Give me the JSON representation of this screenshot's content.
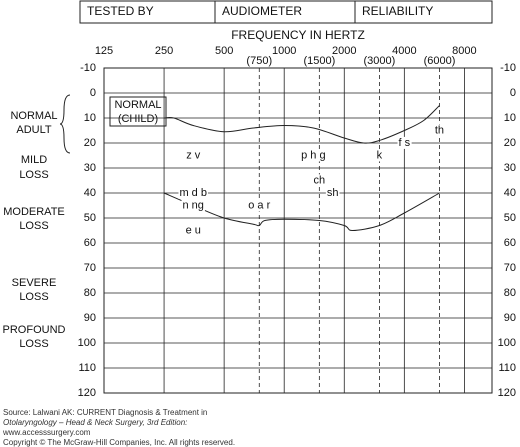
{
  "header": [
    "TESTED BY",
    "AUDIOMETER",
    "RELIABILITY"
  ],
  "chart_data": {
    "type": "line",
    "xlabel": "FREQUENCY IN HERTZ",
    "xlog": true,
    "xlim": [
      125,
      11000
    ],
    "xticks": [
      125,
      250,
      500,
      1000,
      2000,
      4000,
      8000
    ],
    "half_octaves": [
      {
        "value": 750,
        "label": "(750)"
      },
      {
        "value": 1500,
        "label": "(1500)"
      },
      {
        "value": 3000,
        "label": "(3000)"
      },
      {
        "value": 6000,
        "label": "(6000)"
      }
    ],
    "ylim": [
      -10,
      120
    ],
    "yinverted": true,
    "yticks": [
      -10,
      0,
      10,
      20,
      30,
      40,
      50,
      60,
      70,
      80,
      90,
      100,
      110,
      120
    ],
    "hearing_levels": [
      [
        "NORMAL",
        "ADULT"
      ],
      [
        "MILD",
        "LOSS"
      ],
      [
        "MODERATE",
        "LOSS"
      ],
      [
        "SEVERE",
        "LOSS"
      ],
      [
        "PROFOUND",
        "LOSS"
      ]
    ],
    "child_label": [
      "NORMAL",
      "(CHILD)"
    ],
    "series": [
      {
        "x": [
          250,
          280,
          350,
          500,
          700,
          1000,
          1400,
          2000,
          2500,
          3000,
          4000,
          5000,
          6000
        ],
        "values": [
          10,
          10,
          13,
          15.5,
          14,
          13,
          14,
          18,
          20,
          19,
          15,
          11,
          5
        ],
        "color": "#222"
      },
      {
        "x": [
          250,
          350,
          500,
          700,
          750,
          800,
          1000,
          1500,
          2000,
          2200,
          3000,
          4000,
          6000
        ],
        "values": [
          40,
          45,
          50,
          52.5,
          53,
          51,
          50.5,
          51,
          53,
          55,
          53,
          48,
          40
        ],
        "color": "#222"
      }
    ],
    "phonemes": [
      {
        "label": "z v",
        "x": 350,
        "y": 25
      },
      {
        "label": "p h g",
        "x": 1400,
        "y": 25
      },
      {
        "label": "k",
        "x": 3000,
        "y": 25
      },
      {
        "label": "f s",
        "x": 4000,
        "y": 20
      },
      {
        "label": "th",
        "x": 6000,
        "y": 15
      },
      {
        "label": "ch",
        "x": 1500,
        "y": 35
      },
      {
        "label": "sh",
        "x": 1750,
        "y": 40
      },
      {
        "label": "m d b",
        "x": 350,
        "y": 40
      },
      {
        "label": "n ng",
        "x": 350,
        "y": 45
      },
      {
        "label": "o a r",
        "x": 750,
        "y": 45
      },
      {
        "label": "e u",
        "x": 350,
        "y": 55
      }
    ]
  },
  "source": [
    "Source: Lalwani AK: CURRENT Diagnosis & Treatment in",
    "Otolaryngology – Head & Neck Surgery, 3rd Edition:",
    "www.accesssurgery.com",
    "Copyright © The McGraw-Hill Companies, Inc. All rights reserved."
  ]
}
